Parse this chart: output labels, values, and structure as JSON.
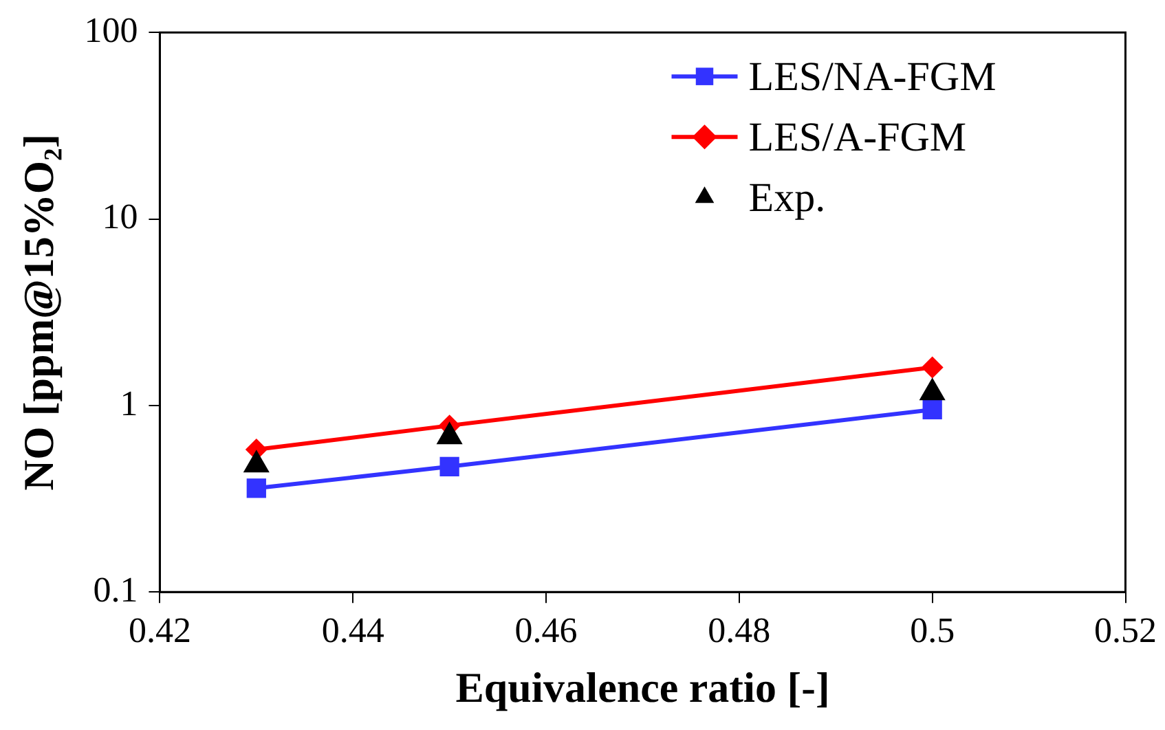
{
  "chart_data": {
    "type": "line",
    "xlabel": "Equivalence ratio [-]",
    "ylabel": "NO [ppm@15%O₂]",
    "x": [
      0.43,
      0.45,
      0.5
    ],
    "series": [
      {
        "name": "LES/NA-FGM",
        "color": "#3333ff",
        "values": [
          0.36,
          0.47,
          0.95
        ],
        "marker": "square"
      },
      {
        "name": "LES/A-FGM",
        "color": "#ff0000",
        "values": [
          0.58,
          0.78,
          1.6
        ],
        "marker": "diamond"
      },
      {
        "name": "Exp.",
        "type": "scatter",
        "color": "#000000",
        "values": [
          0.48,
          0.68,
          1.17
        ],
        "marker": "triangle"
      }
    ],
    "xlim": [
      0.42,
      0.52
    ],
    "xticks": [
      0.42,
      0.44,
      0.46,
      0.48,
      0.5,
      0.52
    ],
    "ylim": [
      0.1,
      100
    ],
    "yticks": [
      0.1,
      1,
      10,
      100
    ],
    "log": "y",
    "grid": false,
    "legend": "top right"
  }
}
